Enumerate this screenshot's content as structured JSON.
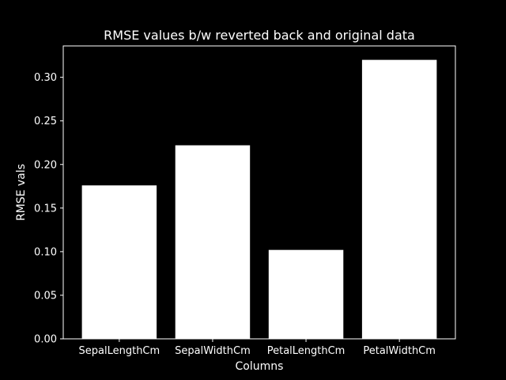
{
  "colors": {
    "background": "#000000",
    "foreground": "#ffffff",
    "bar": "#ffffff"
  },
  "chart_data": {
    "type": "bar",
    "title": "RMSE values b/w reverted back and original data",
    "xlabel": "Columns",
    "ylabel": "RMSE vals",
    "categories": [
      "SepalLengthCm",
      "SepalWidthCm",
      "PetalLengthCm",
      "PetalWidthCm"
    ],
    "values": [
      0.176,
      0.222,
      0.102,
      0.32
    ],
    "ylim": [
      0,
      0.336
    ],
    "yticks": [
      0.0,
      0.05,
      0.1,
      0.15,
      0.2,
      0.25,
      0.3
    ],
    "ytick_labels": [
      "0.00",
      "0.05",
      "0.10",
      "0.15",
      "0.20",
      "0.25",
      "0.30"
    ],
    "grid": false,
    "legend": "none"
  }
}
